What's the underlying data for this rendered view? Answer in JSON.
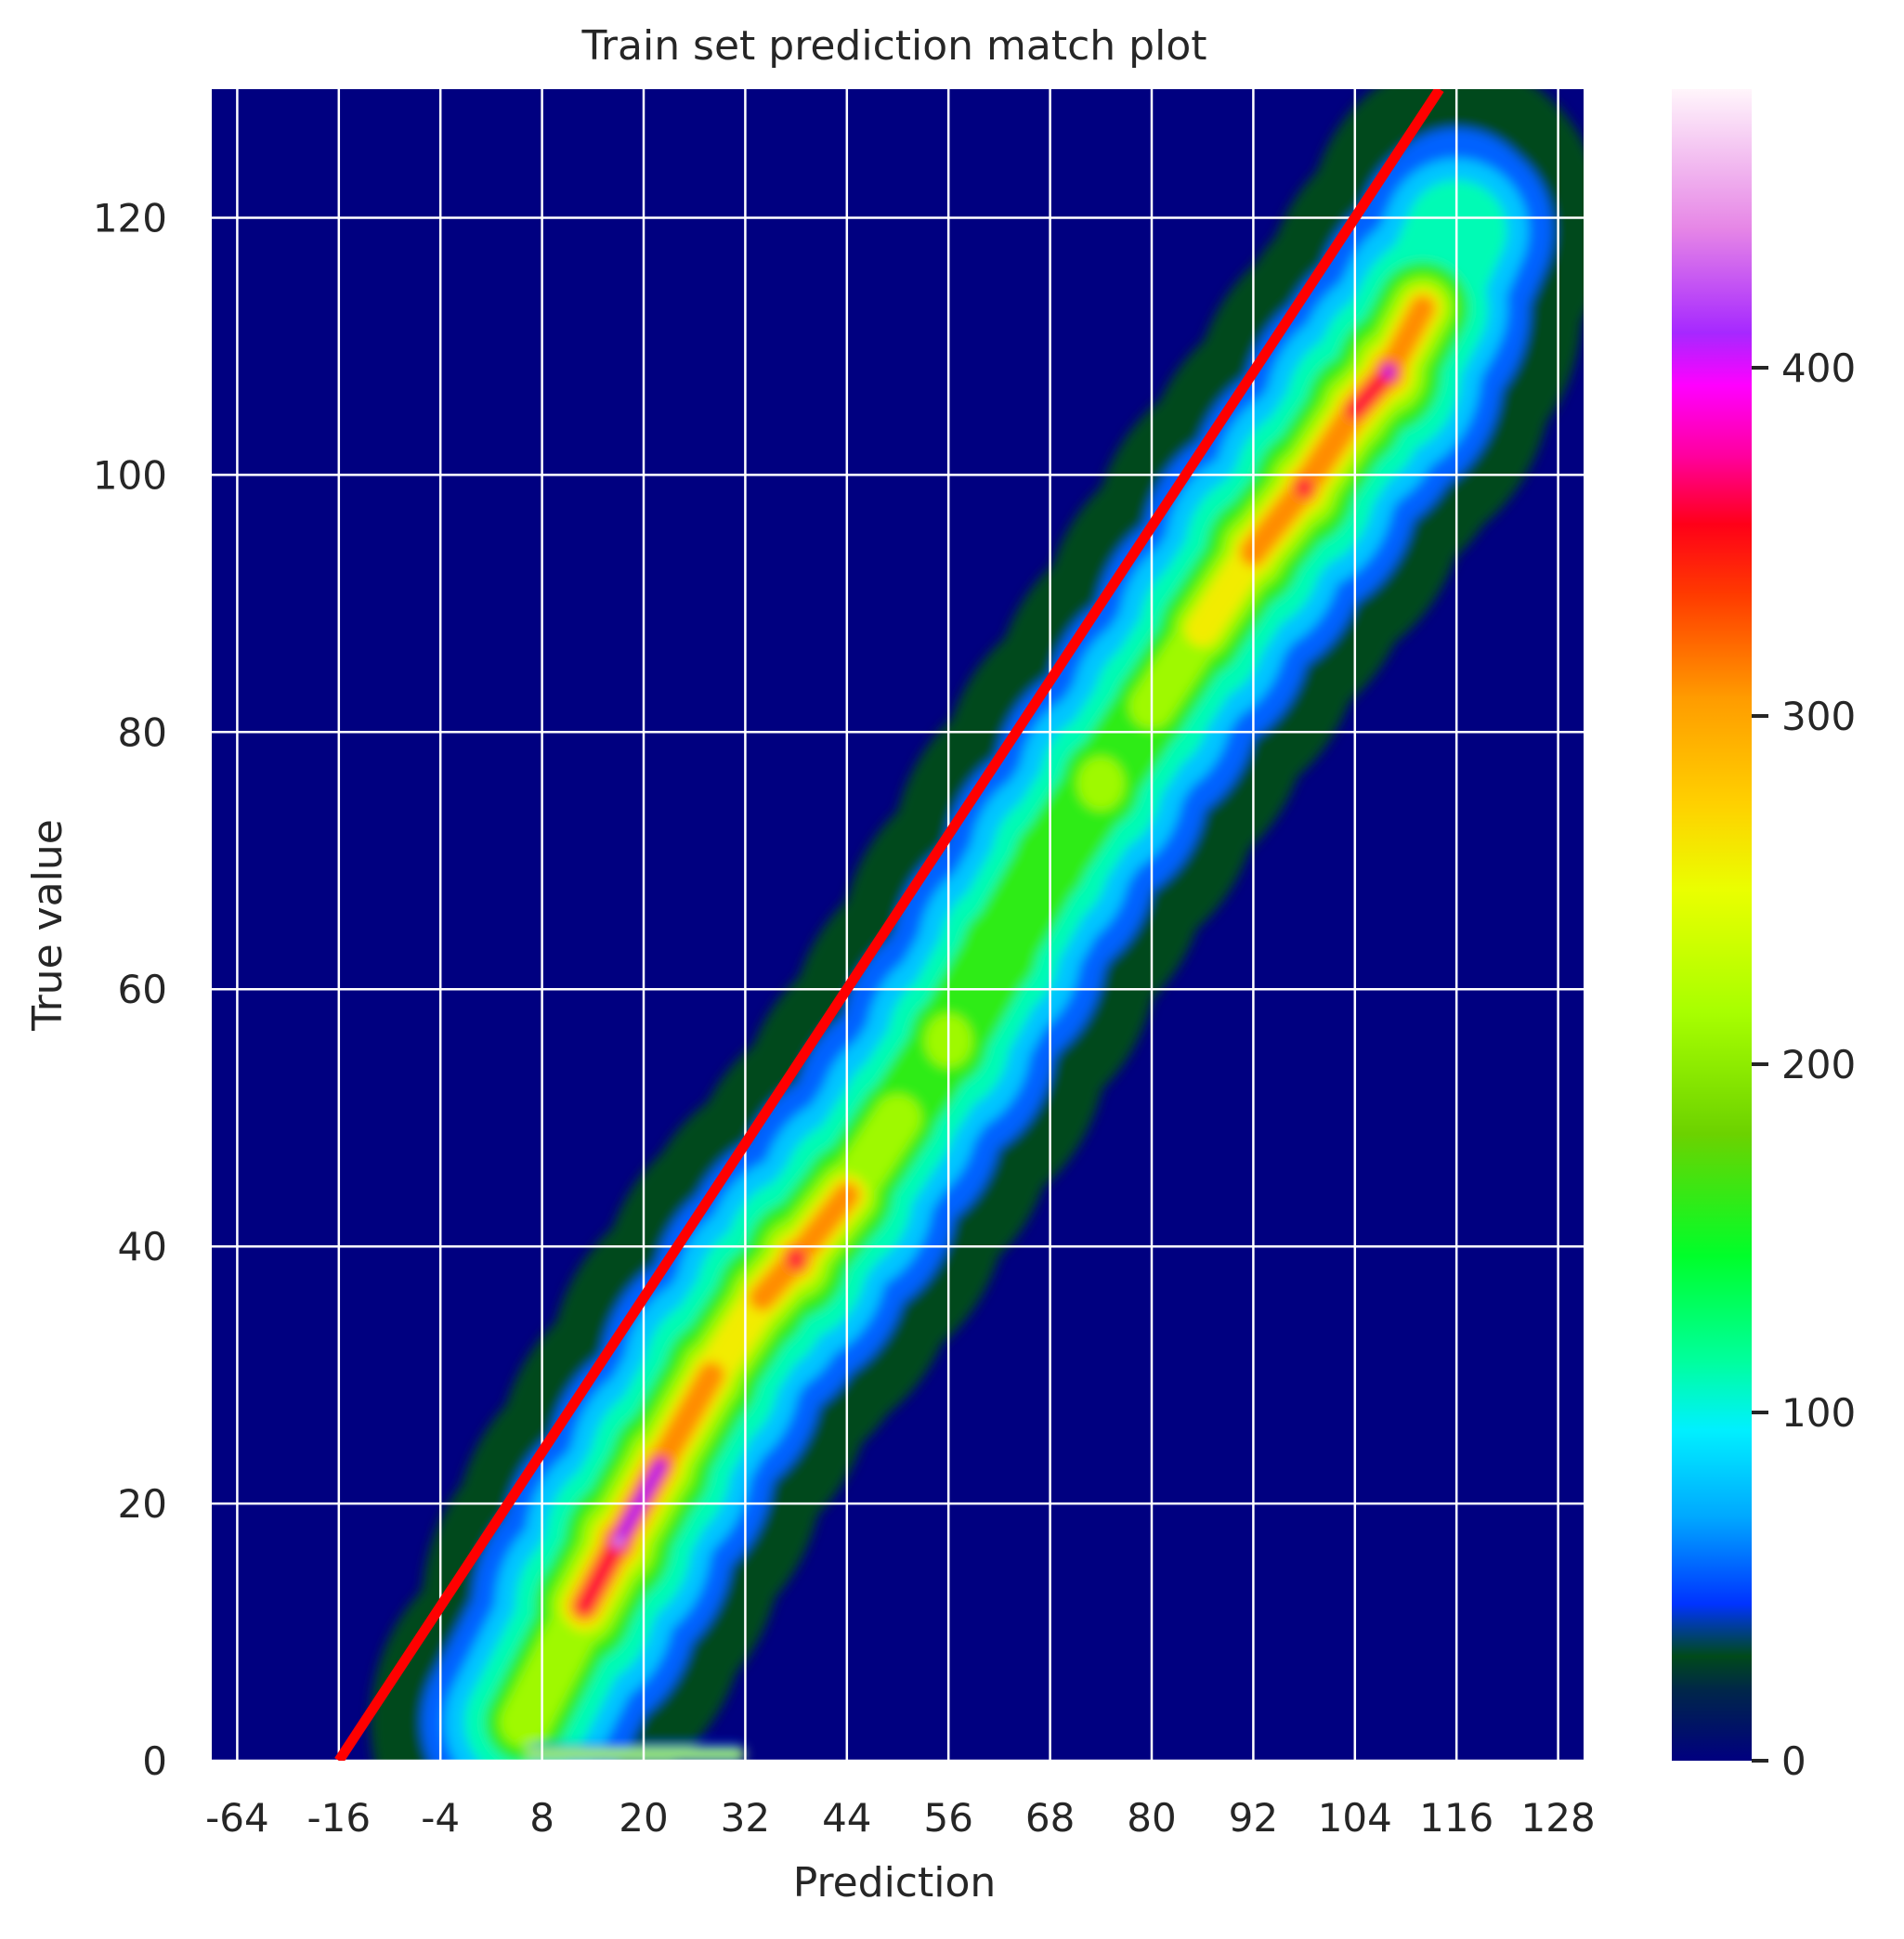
{
  "chart_data": {
    "type": "heatmap",
    "title": "Train set prediction match plot",
    "xlabel": "Prediction",
    "ylabel": "True value",
    "x_tick_labels": [
      "-64",
      "-16",
      "-4",
      "8",
      "20",
      "32",
      "44",
      "56",
      "68",
      "80",
      "92",
      "104",
      "116",
      "128"
    ],
    "y_ticks": [
      0,
      20,
      40,
      60,
      80,
      100,
      120
    ],
    "ylim": [
      0,
      130
    ],
    "grid": true,
    "background_color": "#000080",
    "grid_color": "#ffffff",
    "colormap": "gist_ncar",
    "colorbar": {
      "ticks": [
        0,
        100,
        200,
        300,
        400
      ],
      "range": [
        0,
        480
      ],
      "stops": [
        {
          "value": 0,
          "color": "#000080"
        },
        {
          "value": 20,
          "color": "#00264a"
        },
        {
          "value": 30,
          "color": "#004a1a"
        },
        {
          "value": 45,
          "color": "#0033ff"
        },
        {
          "value": 70,
          "color": "#00a8ff"
        },
        {
          "value": 95,
          "color": "#00f0ff"
        },
        {
          "value": 115,
          "color": "#00ff9c"
        },
        {
          "value": 145,
          "color": "#00ff2a"
        },
        {
          "value": 180,
          "color": "#6cd200"
        },
        {
          "value": 215,
          "color": "#a8ff00"
        },
        {
          "value": 250,
          "color": "#eaff00"
        },
        {
          "value": 275,
          "color": "#ffd000"
        },
        {
          "value": 305,
          "color": "#ff9c00"
        },
        {
          "value": 335,
          "color": "#ff3a00"
        },
        {
          "value": 355,
          "color": "#ff0018"
        },
        {
          "value": 375,
          "color": "#ff00a0"
        },
        {
          "value": 395,
          "color": "#ff00ff"
        },
        {
          "value": 410,
          "color": "#a628ff"
        },
        {
          "value": 440,
          "color": "#e686e6"
        },
        {
          "value": 480,
          "color": "#fff5fb"
        }
      ]
    },
    "density_ridge": [
      {
        "x": 6,
        "y": 3,
        "count": 130
      },
      {
        "x": 13,
        "y": 12,
        "count": 320
      },
      {
        "x": 17,
        "y": 17,
        "count": 460
      },
      {
        "x": 22,
        "y": 23,
        "count": 350
      },
      {
        "x": 28,
        "y": 30,
        "count": 290
      },
      {
        "x": 34,
        "y": 36,
        "count": 270
      },
      {
        "x": 38,
        "y": 39,
        "count": 370
      },
      {
        "x": 44,
        "y": 44,
        "count": 250
      },
      {
        "x": 50,
        "y": 50,
        "count": 170
      },
      {
        "x": 56,
        "y": 56,
        "count": 200
      },
      {
        "x": 62,
        "y": 63,
        "count": 190
      },
      {
        "x": 68,
        "y": 70,
        "count": 180
      },
      {
        "x": 74,
        "y": 76,
        "count": 200
      },
      {
        "x": 80,
        "y": 82,
        "count": 180
      },
      {
        "x": 86,
        "y": 88,
        "count": 220
      },
      {
        "x": 92,
        "y": 94,
        "count": 300
      },
      {
        "x": 98,
        "y": 99,
        "count": 350
      },
      {
        "x": 104,
        "y": 105,
        "count": 330
      },
      {
        "x": 108,
        "y": 108,
        "count": 410
      },
      {
        "x": 112,
        "y": 113,
        "count": 200
      },
      {
        "x": 116,
        "y": 119,
        "count": 90
      }
    ],
    "floor_band": {
      "x_start": 6,
      "x_end": 32,
      "y": 0.5,
      "count": 240
    },
    "identity_line": {
      "color": "#ff0000",
      "points": [
        {
          "x": -16,
          "y": 0
        },
        {
          "x": 114,
          "y": 130
        }
      ]
    }
  }
}
